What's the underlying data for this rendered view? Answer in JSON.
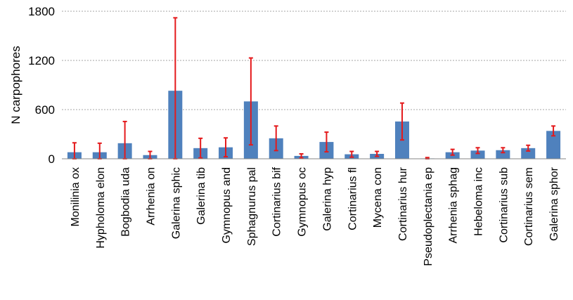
{
  "chart_data": {
    "type": "bar",
    "title": "",
    "xlabel": "",
    "ylabel": "N carpophores",
    "ylim": [
      0,
      1800
    ],
    "yticks": [
      0,
      600,
      1200,
      1800
    ],
    "grid": true,
    "bar_color": "#4f81bd",
    "error_bar_color": "#e41a1c",
    "categories": [
      "Monilinia ox",
      "Hypholoma elon",
      "Bogbodia uda",
      "Arrhenia on",
      "Galerina sphic",
      "Galerina tib",
      "Gymnopus and",
      "Sphagnurus pal",
      "Cortinarius bif",
      "Gymnopus oc",
      "Galerina hyp",
      "Cortinarius fl",
      "Mycena con",
      "Cortinarius hur",
      "Pseudoplectania ep",
      "Arrhenia sphag",
      "Hebeloma inc",
      "Cortinarius sub",
      "Cortinarius sem",
      "Galerina sphor"
    ],
    "values": [
      80,
      80,
      190,
      45,
      830,
      130,
      140,
      700,
      250,
      35,
      205,
      55,
      60,
      455,
      5,
      80,
      100,
      105,
      130,
      340
    ],
    "errors": [
      115,
      110,
      265,
      45,
      890,
      120,
      115,
      530,
      150,
      25,
      120,
      35,
      30,
      225,
      10,
      35,
      35,
      30,
      35,
      60
    ]
  }
}
